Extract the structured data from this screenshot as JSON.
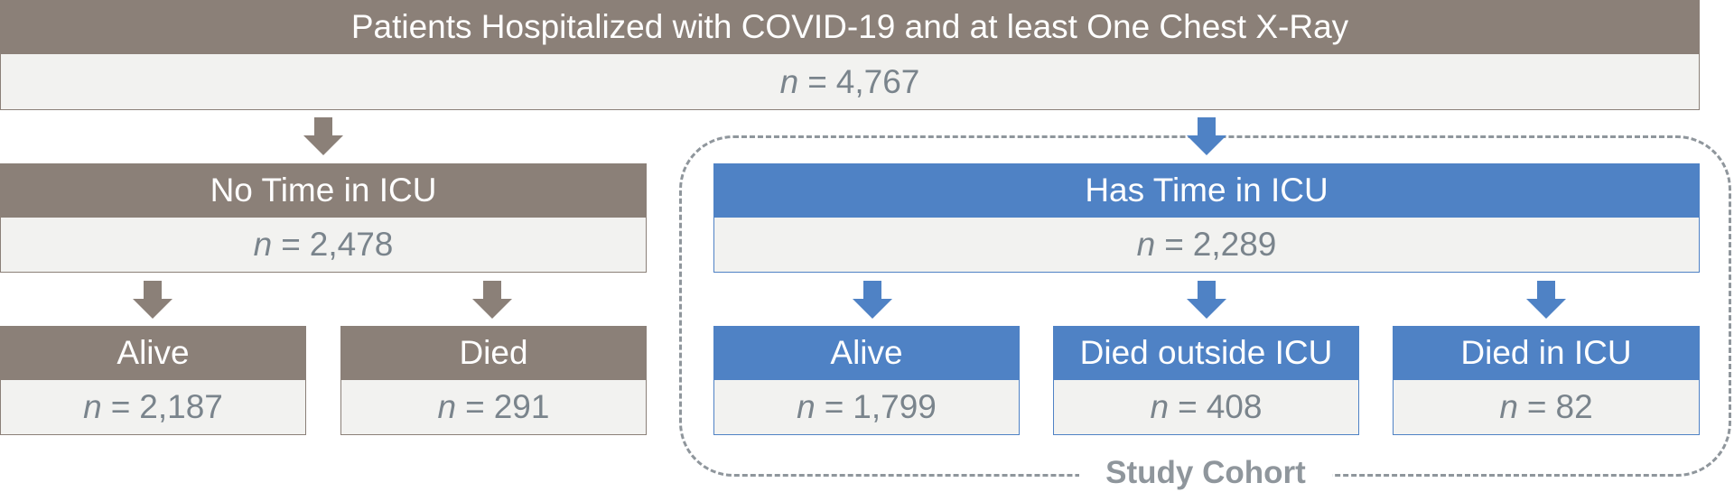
{
  "colors": {
    "gray_header": "#8b8078",
    "blue_header": "#4f82c5",
    "count_background": "#f2f2f0",
    "count_text": "#7a848c",
    "dashed_border": "#8f969c"
  },
  "count_prefix": "n",
  "count_equals": "=",
  "top": {
    "title": "Patients Hospitalized with COVID-19 and at least One Chest X-Ray",
    "count": "4,767"
  },
  "no_icu": {
    "title": "No Time in ICU",
    "count": "2,478"
  },
  "icu": {
    "title": "Has Time in ICU",
    "count": "2,289"
  },
  "no_icu_alive": {
    "title": "Alive",
    "count": "2,187"
  },
  "no_icu_died": {
    "title": "Died",
    "count": "291"
  },
  "icu_alive": {
    "title": "Alive",
    "count": "1,799"
  },
  "icu_died_outside": {
    "title": "Died outside ICU",
    "count": "408"
  },
  "icu_died_in": {
    "title": "Died in ICU",
    "count": "82"
  },
  "cohort_label": "Study Cohort"
}
